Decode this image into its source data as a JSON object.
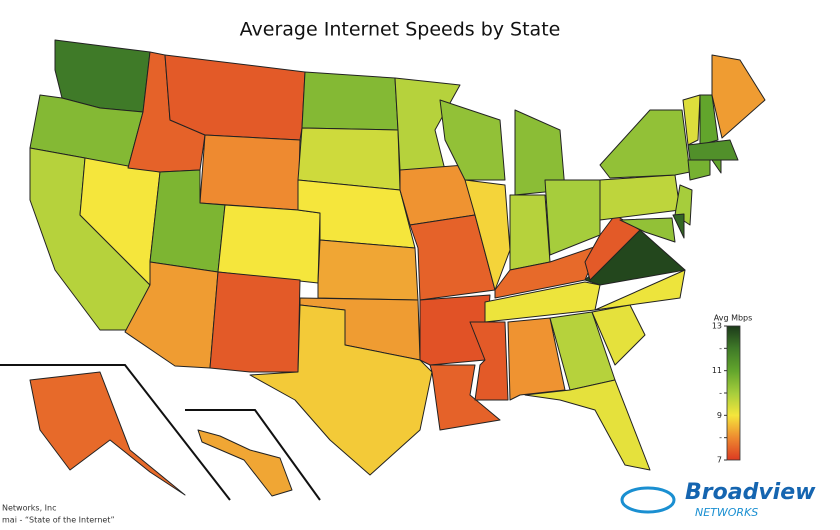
{
  "chart_data": {
    "type": "choropleth",
    "title": "Average Internet Speeds by State",
    "legend_title": "Avg Mbps",
    "values": [
      12,
      10.5,
      9.8,
      9,
      7.5,
      7.4,
      8,
      10.6,
      8.2,
      9,
      7.4,
      10.5,
      9.5,
      9,
      8.3,
      8.2,
      8.7,
      9.8,
      8.1,
      7.5,
      7.3,
      7.5,
      10.3,
      8.8,
      10.4,
      9.8,
      10,
      7.6,
      9.1,
      7.4,
      8.1,
      9.8,
      9.2,
      9.2,
      9.1,
      12.8,
      7.4,
      9.7,
      10.3,
      10,
      12.3,
      10.3,
      9.3,
      11,
      8.2,
      11.5,
      10.7,
      11,
      7.6,
      8.3
    ],
    "colorscale": [
      "#dc3a22",
      "#ee8a30",
      "#f5e63c",
      "#a6cd3c",
      "#62a52c",
      "#3f7a28",
      "#1c3a1a"
    ],
    "clim": [
      7,
      13
    ],
    "cticks": [
      7,
      {
        "value": 8,
        "label": "-"
      },
      9,
      {
        "value": 10,
        "label": "-"
      },
      11,
      {
        "value": 12,
        "label": "-"
      },
      13
    ],
    "source": [
      "Networks, Inc",
      "mai - “State of the Internet”"
    ],
    "logo": {
      "name": "Broadview",
      "sub": "NETWORKS"
    }
  }
}
